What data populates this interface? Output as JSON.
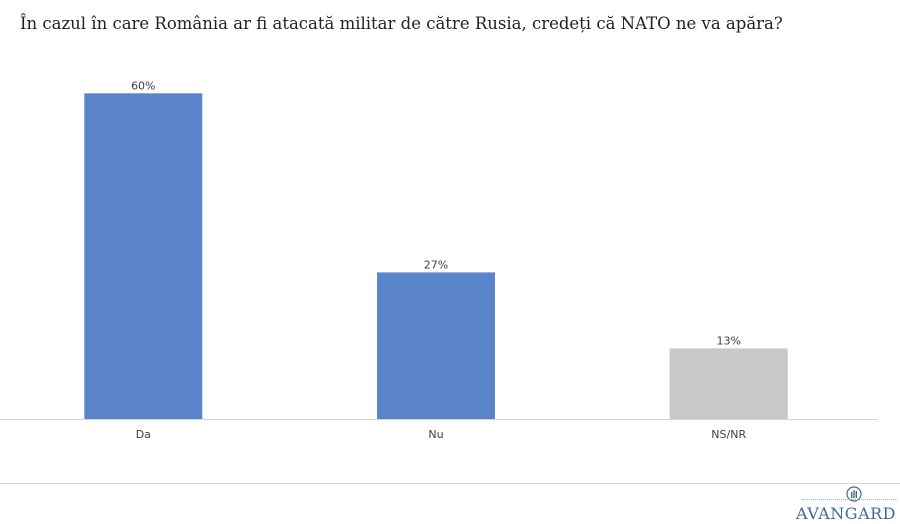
{
  "chart_data": {
    "type": "bar",
    "title": "În cazul în care România ar fi atacată militar de către Rusia, credeți că NATO ne va apăra?",
    "categories": [
      "Da",
      "Nu",
      "NS/NR"
    ],
    "values": [
      60,
      27,
      13
    ],
    "value_labels": [
      "60%",
      "27%",
      "13%"
    ],
    "colors": [
      "#5b85cb",
      "#5b85cb",
      "#c8c8c8"
    ],
    "ylim": [
      0,
      70
    ],
    "grid": false,
    "xlabel": "",
    "ylabel": ""
  },
  "brand": {
    "name": "AVANGARD",
    "color": "#3f6a97",
    "icon": "avangard-logo-icon"
  }
}
